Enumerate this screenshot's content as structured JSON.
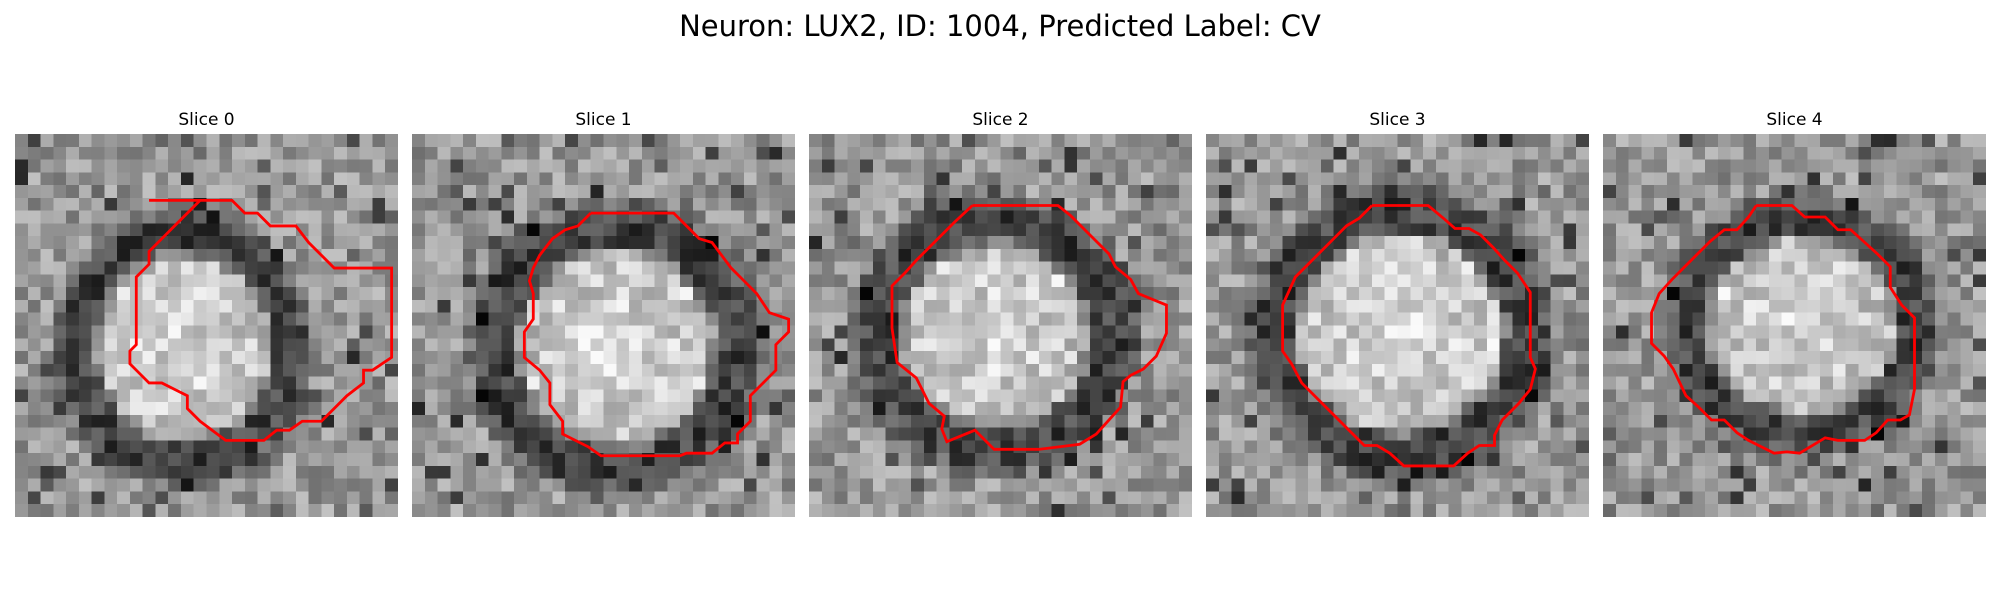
{
  "figure": {
    "title": "Neuron: LUX2, ID: 1004, Predicted Label: CV"
  },
  "slices": [
    {
      "label": "Slice 0"
    },
    {
      "label": "Slice 1"
    },
    {
      "label": "Slice 2"
    },
    {
      "label": "Slice 3"
    },
    {
      "label": "Slice 4"
    }
  ],
  "colors": {
    "contour": "#ff0000",
    "background": "#ffffff"
  }
}
